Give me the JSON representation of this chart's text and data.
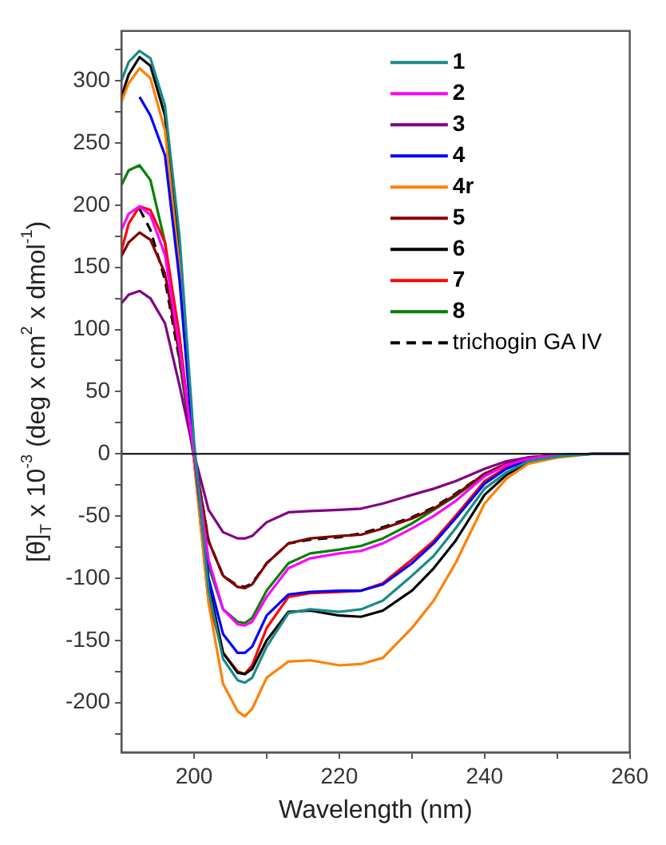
{
  "chart_data": {
    "type": "line",
    "xlabel": "Wavelength (nm)",
    "ylabel": "[θ]$_{T}$ x 10$^{-3}$ (deg x cm$^{2}$ x dmol$^{-1}$)",
    "x": [
      190,
      191,
      192.5,
      194,
      196,
      198,
      200,
      202,
      204,
      206,
      207,
      208,
      210,
      213,
      216,
      220,
      223,
      226,
      230,
      233,
      236,
      240,
      243,
      246,
      250,
      255,
      260
    ],
    "xlim": [
      190,
      260
    ],
    "xticks": [
      200,
      {
        "value": 210,
        "label": null
      },
      220,
      {
        "value": 230,
        "label": null
      },
      240,
      {
        "value": 250,
        "label": null
      },
      260
    ],
    "ylim": [
      -240,
      340
    ],
    "yticks": [
      {
        "value": -225,
        "label": null
      },
      -200,
      {
        "value": -175,
        "label": null
      },
      -150,
      {
        "value": -125,
        "label": null
      },
      -100,
      {
        "value": -75,
        "label": null
      },
      -50,
      {
        "value": -25,
        "label": null
      },
      0,
      {
        "value": 25,
        "label": null
      },
      50,
      {
        "value": 75,
        "label": null
      },
      100,
      {
        "value": 125,
        "label": null
      },
      150,
      {
        "value": 175,
        "label": null
      },
      200,
      {
        "value": 225,
        "label": null
      },
      250,
      {
        "value": 275,
        "label": null
      },
      300,
      {
        "value": 325,
        "label": null
      }
    ],
    "grid": false,
    "legend": "top right",
    "marker": "none",
    "ref_lines": [
      {
        "axis": "y",
        "value": 0,
        "color": "#000000"
      }
    ],
    "series": [
      {
        "name": "1",
        "color": "#1a8a8a",
        "values": [
          300,
          315,
          324,
          318,
          280,
          175,
          10,
          -110,
          -165,
          -182,
          -184,
          -180,
          -155,
          -128,
          -125,
          -127,
          -125,
          -118,
          -98,
          -82,
          -60,
          -28,
          -15,
          -6,
          -2,
          0,
          0
        ]
      },
      {
        "name": "2",
        "color": "#ff00ff",
        "values": [
          180,
          193,
          199,
          192,
          160,
          85,
          0,
          -85,
          -125,
          -137,
          -138,
          -135,
          -115,
          -92,
          -84,
          -80,
          -78,
          -72,
          -60,
          -50,
          -38,
          -18,
          -9,
          -4,
          -1,
          0,
          0
        ]
      },
      {
        "name": "3",
        "color": "#800080",
        "values": [
          121,
          128,
          131,
          125,
          105,
          55,
          0,
          -45,
          -63,
          -68,
          -68,
          -66,
          -55,
          -47,
          -46,
          -45,
          -44,
          -40,
          -33,
          -28,
          -22,
          -12,
          -6,
          -3,
          -1,
          0,
          0
        ]
      },
      {
        "name": "4",
        "color": "#0000ff",
        "values": [
          null,
          null,
          287,
          272,
          240,
          140,
          0,
          -100,
          -145,
          -160,
          -160,
          -155,
          -130,
          -113,
          -111,
          -110,
          -110,
          -105,
          -88,
          -72,
          -52,
          -24,
          -12,
          -5,
          -2,
          null,
          null
        ]
      },
      {
        "name": "4r",
        "color": "#ff8000",
        "values": [
          283,
          298,
          310,
          302,
          260,
          150,
          -5,
          -120,
          -185,
          -207,
          -211,
          -205,
          -180,
          -167,
          -166,
          -170,
          -169,
          -164,
          -140,
          -118,
          -88,
          -40,
          -20,
          -8,
          -3,
          0,
          0
        ]
      },
      {
        "name": "5",
        "color": "#800000",
        "values": [
          159,
          170,
          178,
          172,
          145,
          80,
          0,
          -70,
          -98,
          -107,
          -108,
          -105,
          -88,
          -72,
          -68,
          -66,
          -65,
          -60,
          -52,
          -44,
          -33,
          -16,
          -8,
          -3,
          -1,
          0,
          0
        ]
      },
      {
        "name": "6",
        "color": "#000000",
        "values": [
          287,
          305,
          319,
          312,
          272,
          165,
          5,
          -105,
          -160,
          -176,
          -177,
          -173,
          -150,
          -127,
          -126,
          -130,
          -131,
          -126,
          -110,
          -92,
          -70,
          -33,
          -17,
          -7,
          -2,
          0,
          0
        ]
      },
      {
        "name": "7",
        "color": "#ff0000",
        "values": [
          163,
          185,
          199,
          196,
          170,
          95,
          -5,
          -118,
          -160,
          -175,
          -177,
          -170,
          -140,
          -115,
          -112,
          -111,
          -110,
          -104,
          -85,
          -70,
          -50,
          -22,
          -11,
          -4,
          null,
          null,
          null
        ]
      },
      {
        "name": "8",
        "color": "#008000",
        "values": [
          216,
          228,
          232,
          220,
          170,
          75,
          -5,
          -90,
          -125,
          -135,
          -136,
          -132,
          -110,
          -88,
          -80,
          -77,
          -74,
          -68,
          -56,
          -45,
          -34,
          -17,
          -9,
          null,
          null,
          null,
          null
        ]
      },
      {
        "name": "trichogin GA IV",
        "color": "#000000",
        "line_style": "dashed",
        "values": [
          null,
          null,
          197,
          180,
          140,
          75,
          0,
          -70,
          -98,
          -106,
          -107,
          -104,
          -88,
          -72,
          -69,
          -67,
          -64,
          -59,
          -51,
          -43,
          -32,
          -16,
          -8,
          -3,
          -1,
          0,
          0
        ]
      }
    ]
  }
}
